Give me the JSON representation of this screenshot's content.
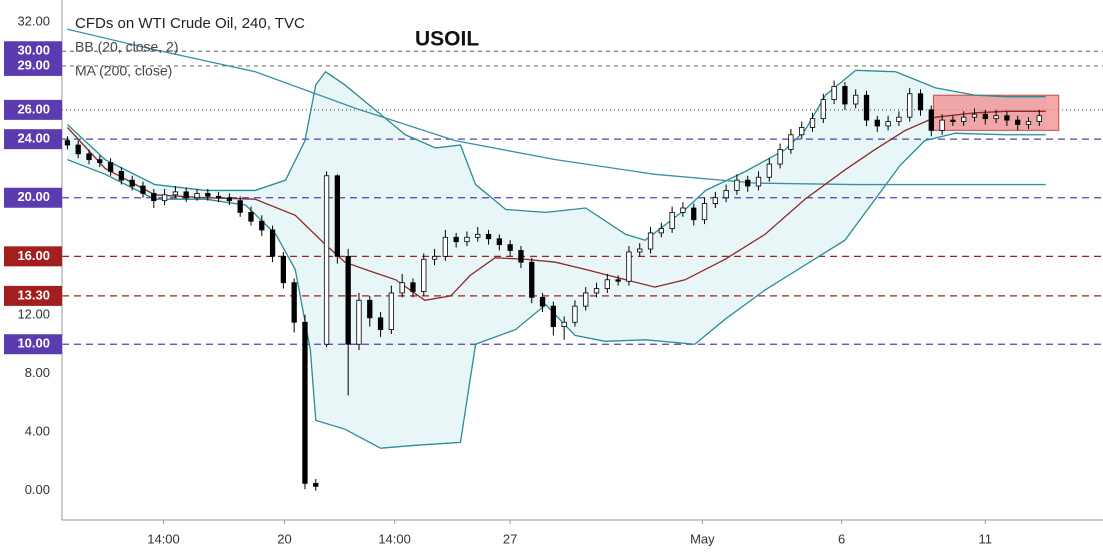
{
  "chart_data": {
    "type": "candlestick",
    "symbol_label": "CFDs on WTI Crude Oil, 240, TVC",
    "title": "USOIL",
    "up_color": "#ffffff",
    "down_color": "#000000",
    "xlim": [
      -0.5,
      95.9
    ],
    "ylim": [
      -2,
      33.5
    ],
    "xticks": [
      {
        "value": 8.9,
        "label": "14:00"
      },
      {
        "value": 20.1,
        "label": "20"
      },
      {
        "value": 30.3,
        "label": "14:00"
      },
      {
        "value": 41.0,
        "label": "27"
      },
      {
        "value": 58.8,
        "label": "May"
      },
      {
        "value": 71.7,
        "label": "6"
      },
      {
        "value": 85.0,
        "label": "11"
      }
    ],
    "yticks": [
      {
        "value": 32,
        "label": "32.00"
      },
      {
        "value": 12,
        "label": "12.00"
      },
      {
        "value": 8,
        "label": "8.00"
      },
      {
        "value": 4,
        "label": "4.00"
      },
      {
        "value": 0,
        "label": "0.00"
      }
    ],
    "open": [
      23.9,
      23.6,
      23.0,
      22.6,
      22.4,
      21.8,
      21.2,
      20.8,
      20.3,
      19.8,
      20.2,
      20.4,
      20.0,
      20.3,
      20.1,
      20.0,
      19.8,
      19.0,
      18.4,
      17.8,
      16.0,
      14.2,
      11.5,
      0.5,
      10.0,
      21.5,
      16.0,
      10.0,
      13.0,
      11.8,
      11.0,
      13.5,
      14.2,
      13.6,
      15.8,
      16.0,
      17.3,
      17.0,
      17.3,
      17.5,
      17.2,
      16.8,
      16.4,
      15.6,
      13.2,
      12.6,
      11.2,
      11.5,
      12.6,
      13.5,
      13.8,
      14.4,
      14.3,
      16.3,
      16.5,
      17.6,
      17.9,
      19.0,
      19.3,
      18.5,
      19.6,
      20.0,
      20.5,
      21.2,
      20.8,
      21.4,
      22.3,
      23.3,
      24.3,
      24.8,
      25.4,
      26.7,
      27.6,
      26.4,
      27.0,
      25.3,
      24.9,
      25.2,
      25.5,
      27.1,
      26.0,
      24.6,
      25.3,
      25.2,
      25.5,
      25.7,
      25.4,
      25.6,
      25.3,
      25.0,
      25.2
    ],
    "high": [
      24.2,
      23.9,
      23.3,
      22.9,
      22.7,
      22.1,
      21.5,
      21.1,
      20.6,
      20.6,
      20.8,
      20.7,
      20.6,
      20.6,
      20.4,
      20.3,
      20.1,
      19.4,
      18.8,
      18.1,
      16.3,
      14.5,
      12.0,
      0.8,
      21.8,
      21.6,
      16.5,
      13.5,
      13.3,
      12.2,
      14.0,
      14.8,
      14.5,
      16.2,
      16.5,
      17.8,
      17.6,
      17.7,
      18.0,
      17.8,
      17.5,
      17.1,
      16.7,
      15.9,
      13.5,
      12.9,
      11.9,
      13.0,
      13.9,
      14.2,
      14.8,
      14.7,
      16.7,
      16.9,
      18.0,
      18.3,
      19.4,
      19.7,
      19.6,
      20.0,
      20.4,
      20.9,
      21.6,
      21.5,
      21.8,
      22.7,
      23.7,
      24.7,
      25.2,
      25.8,
      27.1,
      28.0,
      27.9,
      27.4,
      27.3,
      25.6,
      25.6,
      25.9,
      27.5,
      27.4,
      26.3,
      25.7,
      25.6,
      25.9,
      26.1,
      26.0,
      26.0,
      25.9,
      25.6,
      25.5,
      26.0
    ],
    "low": [
      23.3,
      22.7,
      22.3,
      22.1,
      21.5,
      20.9,
      20.5,
      20.0,
      19.3,
      19.5,
      20.0,
      19.7,
      19.8,
      19.8,
      19.7,
      19.5,
      18.7,
      18.1,
      17.4,
      15.6,
      13.8,
      10.8,
      0.1,
      0.0,
      9.8,
      15.5,
      6.5,
      9.6,
      11.2,
      10.5,
      10.7,
      13.2,
      13.2,
      13.3,
      15.4,
      15.7,
      16.6,
      16.7,
      17.0,
      16.8,
      16.4,
      16.0,
      15.2,
      12.8,
      12.2,
      10.6,
      10.3,
      11.2,
      12.3,
      13.2,
      13.5,
      14.0,
      14.0,
      16.0,
      16.2,
      17.3,
      17.6,
      18.7,
      18.1,
      18.2,
      19.3,
      19.7,
      20.2,
      20.4,
      20.5,
      21.1,
      22.0,
      23.0,
      24.0,
      24.5,
      25.1,
      26.4,
      26.0,
      26.1,
      24.9,
      24.5,
      24.6,
      24.9,
      25.2,
      25.6,
      24.2,
      24.3,
      24.9,
      24.9,
      25.2,
      25.0,
      25.1,
      24.9,
      24.6,
      24.7,
      24.9
    ],
    "close": [
      23.6,
      23.0,
      22.6,
      22.4,
      21.8,
      21.2,
      20.8,
      20.3,
      19.8,
      20.2,
      20.4,
      20.0,
      20.3,
      20.1,
      20.0,
      19.8,
      19.0,
      18.4,
      17.8,
      16.0,
      14.2,
      11.5,
      0.5,
      0.3,
      21.5,
      16.0,
      10.0,
      13.0,
      11.8,
      11.0,
      13.5,
      14.2,
      13.6,
      15.8,
      16.0,
      17.3,
      17.0,
      17.3,
      17.5,
      17.2,
      16.8,
      16.4,
      15.6,
      13.2,
      12.6,
      11.2,
      11.5,
      12.6,
      13.5,
      13.8,
      14.4,
      14.3,
      16.3,
      16.5,
      17.6,
      17.9,
      19.0,
      19.3,
      18.5,
      19.6,
      20.0,
      20.5,
      21.2,
      20.8,
      21.4,
      22.3,
      23.3,
      24.3,
      24.8,
      25.4,
      26.7,
      27.6,
      26.4,
      27.0,
      25.3,
      24.9,
      25.2,
      25.5,
      27.1,
      26.0,
      24.6,
      25.3,
      25.2,
      25.5,
      25.7,
      25.4,
      25.6,
      25.3,
      25.0,
      25.2,
      25.6
    ],
    "bollinger": {
      "name": "BB (20, close, 2)",
      "color": "#2a8c94",
      "fill": "#e8f6f7",
      "basis_color": "#8b2a2a",
      "upper": {
        "x": [
          0,
          3.5,
          8.1,
          12.8,
          17.4,
          20.2,
          22.0,
          23.0,
          23.9,
          25.7,
          28.5,
          31.3,
          34.1,
          36.4,
          37.8,
          40.6,
          44.3,
          48.0,
          51.7,
          53.5,
          57.2,
          59.1,
          62.8,
          66.5,
          68.3,
          70.2,
          73.0,
          76.7,
          80.4,
          84.1,
          86.9,
          90.6
        ],
        "values": [
          25.0,
          22.6,
          20.9,
          20.5,
          20.5,
          21.2,
          23.9,
          27.7,
          28.6,
          27.7,
          26.0,
          24.3,
          23.4,
          23.6,
          20.9,
          19.2,
          19.0,
          19.3,
          17.5,
          17.1,
          19.2,
          20.5,
          21.8,
          23.3,
          24.6,
          27.0,
          28.7,
          28.6,
          27.5,
          27.0,
          26.9,
          26.9
        ]
      },
      "lower": {
        "x": [
          0,
          3.5,
          8.1,
          12.8,
          16.5,
          19.3,
          21.1,
          22.5,
          23.0,
          25.7,
          29.0,
          32.2,
          36.4,
          37.8,
          41.5,
          44.3,
          47.0,
          49.8,
          53.5,
          58.1,
          60.9,
          64.6,
          68.3,
          72.0,
          74.8,
          77.1,
          79.4,
          82.2,
          86.9,
          90.6
        ],
        "values": [
          22.6,
          21.6,
          19.9,
          19.9,
          19.5,
          17.5,
          15.1,
          9.6,
          4.8,
          4.2,
          2.9,
          3.1,
          3.3,
          10.0,
          11.0,
          12.7,
          10.6,
          10.2,
          10.3,
          10.0,
          11.7,
          13.7,
          15.4,
          17.1,
          19.9,
          22.2,
          23.9,
          24.4,
          24.3,
          24.3
        ]
      },
      "basis": {
        "x": [
          0,
          3.5,
          8.1,
          12.8,
          17.4,
          21.1,
          23.9,
          25.7,
          27.6,
          30.4,
          33.1,
          35.5,
          37.3,
          39.6,
          42.4,
          45.2,
          48.0,
          51.7,
          54.4,
          57.2,
          60.9,
          64.6,
          68.3,
          72.0,
          74.8,
          77.6,
          80.4,
          84.1,
          86.9,
          90.6
        ],
        "values": [
          24.8,
          22.0,
          20.2,
          20.0,
          19.9,
          18.8,
          16.8,
          15.6,
          15.1,
          14.4,
          13.0,
          13.3,
          14.7,
          15.9,
          15.8,
          15.6,
          15.1,
          14.4,
          13.9,
          14.4,
          15.8,
          17.5,
          19.9,
          21.9,
          23.3,
          24.6,
          25.5,
          25.8,
          25.9,
          25.9
        ]
      }
    },
    "ma": {
      "name": "MA (200, close)",
      "color": "#3a8fa8",
      "x": [
        0,
        8.1,
        17.4,
        26.7,
        35.9,
        45.2,
        54.4,
        63.7,
        72.9,
        82.2,
        90.6
      ],
      "values": [
        31.5,
        30.1,
        28.6,
        26.1,
        23.9,
        22.6,
        21.6,
        21.0,
        20.9,
        20.9,
        20.9
      ]
    },
    "levels": [
      {
        "value": 30,
        "label": "30.00",
        "box_color": "#5b3cb0",
        "line_color": "#777777",
        "dash": "4,4"
      },
      {
        "value": 29,
        "label": "29.00",
        "box_color": "#5b3cb0",
        "line_color": "#777777",
        "dash": "4,4"
      },
      {
        "value": 26,
        "label": "26.00",
        "box_color": "#5b3cb0",
        "line_color": "#666666",
        "dash": "1,3"
      },
      {
        "value": 24,
        "label": "24.00",
        "box_color": "#5b3cb0",
        "line_color": "#5b3cb0",
        "dash": "7,5"
      },
      {
        "value": 20,
        "label": "20.00",
        "box_color": "#5b3cb0",
        "line_color": "#5b3cb0",
        "dash": "7,5"
      },
      {
        "value": 16,
        "label": "16.00",
        "box_color": "#a31f1f",
        "line_color": "#a31f1f",
        "dash": "7,5"
      },
      {
        "value": 13.3,
        "label": "13.30",
        "box_color": "#a31f1f",
        "line_color": "#a31f1f",
        "dash": "7,5"
      },
      {
        "value": 10,
        "label": "10.00",
        "box_color": "#5b3cb0",
        "line_color": "#5b3cb0",
        "dash": "7,5"
      }
    ],
    "highlight": {
      "x_range": [
        80.2,
        91.8
      ],
      "y_range": [
        24.6,
        27.0
      ],
      "color": "#f28b8b",
      "border": "#c0504d"
    }
  }
}
